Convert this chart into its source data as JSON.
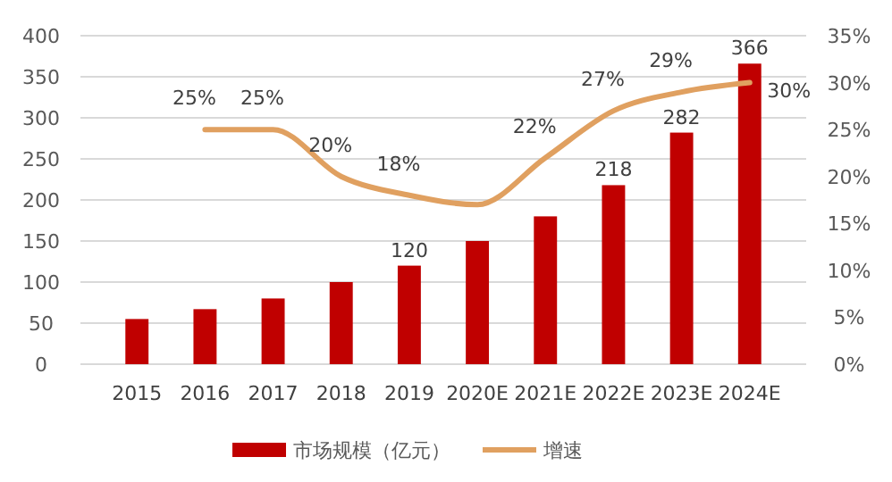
{
  "chart_data": {
    "type": "bar",
    "categories": [
      "2015",
      "2016",
      "2017",
      "2018",
      "2019",
      "2020E",
      "2021E",
      "2022E",
      "2023E",
      "2024E"
    ],
    "series": [
      {
        "name": "市场规模（亿元）",
        "color": "#c00000",
        "values": [
          55,
          67,
          80,
          100,
          120,
          150,
          180,
          218,
          282,
          366
        ],
        "value_labels": [
          null,
          null,
          null,
          null,
          "120",
          null,
          null,
          "218",
          "282",
          "366"
        ]
      },
      {
        "name": "增速",
        "type": "line",
        "axis": "y2",
        "color": "#e0a060",
        "values": [
          null,
          25,
          25,
          20,
          18,
          17,
          22,
          27,
          29,
          30
        ],
        "value_labels": [
          null,
          "25%",
          "25%",
          "20%",
          "18%",
          null,
          "22%",
          "27%",
          "29%",
          "30%"
        ]
      }
    ],
    "ylim": [
      0,
      400
    ],
    "yticks": [
      0,
      50,
      100,
      150,
      200,
      250,
      300,
      350,
      400
    ],
    "y2lim": [
      0,
      35
    ],
    "y2ticks": [
      {
        "value": 0,
        "label": "0%"
      },
      {
        "value": 5,
        "label": "5%"
      },
      {
        "value": 10,
        "label": "10%"
      },
      {
        "value": 15,
        "label": "15%"
      },
      {
        "value": 20,
        "label": "20%"
      },
      {
        "value": 25,
        "label": "25%"
      },
      {
        "value": 30,
        "label": "30%"
      },
      {
        "value": 35,
        "label": "35%"
      }
    ],
    "grid": "y",
    "legend": "bottom",
    "marker": "none"
  }
}
